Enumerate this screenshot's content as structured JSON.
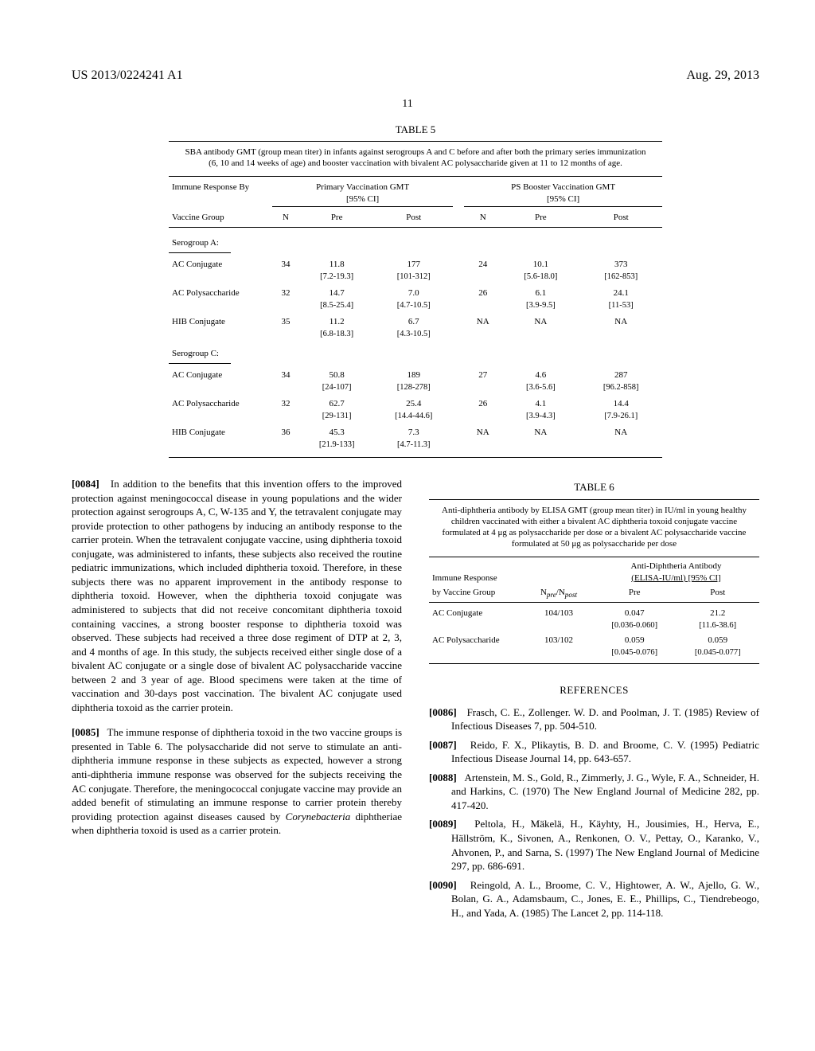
{
  "header": {
    "left": "US 2013/0224241 A1",
    "right": "Aug. 29, 2013",
    "page": "11"
  },
  "table5": {
    "label": "TABLE 5",
    "caption": "SBA antibody GMT (group mean titer) in infants against serogroups A and C before and after both the primary series immunization (6, 10 and 14 weeks of age) and booster vaccination with bivalent AC polysaccharide given at 11 to 12 months of age.",
    "col_group1_label": "Immune Response By",
    "col_group2_label": "Primary Vaccination GMT",
    "col_group2_sub": "[95% CI]",
    "col_group3_label": "PS Booster Vaccination GMT",
    "col_group3_sub": "[95% CI]",
    "sub_headers": {
      "vg": "Vaccine Group",
      "n": "N",
      "pre": "Pre",
      "post": "Post"
    },
    "sections": [
      {
        "name": "Serogroup A:",
        "rows": [
          {
            "vg": "AC Conjugate",
            "n1": "34",
            "pre1": "11.8",
            "pre1ci": "[7.2-19.3]",
            "post1": "177",
            "post1ci": "[101-312]",
            "n2": "24",
            "pre2": "10.1",
            "pre2ci": "[5.6-18.0]",
            "post2": "373",
            "post2ci": "[162-853]"
          },
          {
            "vg": "AC Polysaccharide",
            "n1": "32",
            "pre1": "14.7",
            "pre1ci": "[8.5-25.4]",
            "post1": "7.0",
            "post1ci": "[4.7-10.5]",
            "n2": "26",
            "pre2": "6.1",
            "pre2ci": "[3.9-9.5]",
            "post2": "24.1",
            "post2ci": "[11-53]"
          },
          {
            "vg": "HIB Conjugate",
            "n1": "35",
            "pre1": "11.2",
            "pre1ci": "[6.8-18.3]",
            "post1": "6.7",
            "post1ci": "[4.3-10.5]",
            "n2": "NA",
            "pre2": "NA",
            "pre2ci": "",
            "post2": "NA",
            "post2ci": ""
          }
        ]
      },
      {
        "name": "Serogroup C:",
        "rows": [
          {
            "vg": "AC Conjugate",
            "n1": "34",
            "pre1": "50.8",
            "pre1ci": "[24-107]",
            "post1": "189",
            "post1ci": "[128-278]",
            "n2": "27",
            "pre2": "4.6",
            "pre2ci": "[3.6-5.6]",
            "post2": "287",
            "post2ci": "[96.2-858]"
          },
          {
            "vg": "AC Polysaccharide",
            "n1": "32",
            "pre1": "62.7",
            "pre1ci": "[29-131]",
            "post1": "25.4",
            "post1ci": "[14.4-44.6]",
            "n2": "26",
            "pre2": "4.1",
            "pre2ci": "[3.9-4.3]",
            "post2": "14.4",
            "post2ci": "[7.9-26.1]"
          },
          {
            "vg": "HIB Conjugate",
            "n1": "36",
            "pre1": "45.3",
            "pre1ci": "[21.9-133]",
            "post1": "7.3",
            "post1ci": "[4.7-11.3]",
            "n2": "NA",
            "pre2": "NA",
            "pre2ci": "",
            "post2": "NA",
            "post2ci": ""
          }
        ]
      }
    ]
  },
  "para84": {
    "num": "[0084]",
    "text": "In addition to the benefits that this invention offers to the improved protection against meningococcal disease in young populations and the wider protection against serogroups A, C, W-135 and Y, the tetravalent conjugate may provide protection to other pathogens by inducing an antibody response to the carrier protein. When the tetravalent conjugate vaccine, using diphtheria toxoid conjugate, was administered to infants, these subjects also received the routine pediatric immunizations, which included diphtheria toxoid. Therefore, in these subjects there was no apparent improvement in the antibody response to diphtheria toxoid. However, when the diphtheria toxoid conjugate was administered to subjects that did not receive concomitant diphtheria toxoid containing vaccines, a strong booster response to diphtheria toxoid was observed. These subjects had received a three dose regiment of DTP at 2, 3, and 4 months of age. In this study, the subjects received either single dose of a bivalent AC conjugate or a single dose of bivalent AC polysaccharide vaccine between 2 and 3 year of age. Blood specimens were taken at the time of vaccination and 30-days post vaccination. The bivalent AC conjugate used diphtheria toxoid as the carrier protein."
  },
  "para85": {
    "num": "[0085]",
    "text_before_italic": "The immune response of diphtheria toxoid in the two vaccine groups is presented in Table 6. The polysaccharide did not serve to stimulate an anti-diphtheria immune response in these subjects as expected, however a strong anti-diphtheria immune response was observed for the subjects receiving the AC conjugate. Therefore, the meningococcal conjugate vaccine may provide an added benefit of stimulating an immune response to carrier protein thereby providing protection against diseases caused by ",
    "italic": "Corynebacteria",
    "text_after_italic": " diphtheriae when diphtheria toxoid is used as a carrier protein."
  },
  "table6": {
    "label": "TABLE 6",
    "caption": "Anti-diphtheria antibody by ELISA GMT (group mean titer) in IU/ml in young healthy children vaccinated with either a bivalent AC diphtheria toxoid conjugate vaccine formulated at 4 μg as polysaccharide per dose or a bivalent AC polysaccharide vaccine formulated at 50 μg as polysaccharide per dose",
    "h_ir": "Immune Response",
    "h_adab": "Anti-Diphtheria Antibody",
    "h_adab_sub": "(ELISA-IU/ml) [95% CI]",
    "h_vg": "by Vaccine Group",
    "h_n": "N",
    "h_n_pre": "pre",
    "h_n_post": "post",
    "h_pre": "Pre",
    "h_post": "Post",
    "rows": [
      {
        "vg": "AC Conjugate",
        "n": "104/103",
        "pre": "0.047",
        "preci": "[0.036-0.060]",
        "post": "21.2",
        "postci": "[11.6-38.6]"
      },
      {
        "vg": "AC Polysaccharide",
        "n": "103/102",
        "pre": "0.059",
        "preci": "[0.045-0.076]",
        "post": "0.059",
        "postci": "[0.045-0.077]"
      }
    ]
  },
  "refs": {
    "title": "REFERENCES",
    "items": [
      {
        "num": "[0086]",
        "text": "Frasch, C. E., Zollenger. W. D. and Poolman, J. T. (1985) Review of Infectious Diseases 7, pp. 504-510."
      },
      {
        "num": "[0087]",
        "text": "Reido, F. X., Plikaytis, B. D. and Broome, C. V. (1995) Pediatric Infectious Disease Journal 14, pp. 643-657."
      },
      {
        "num": "[0088]",
        "text": "Artenstein, M. S., Gold, R., Zimmerly, J. G., Wyle, F. A., Schneider, H. and Harkins, C. (1970) The New England Journal of Medicine 282, pp. 417-420."
      },
      {
        "num": "[0089]",
        "text": "Peltola, H., Mäkelä, H., Käyhty, H., Jousimies, H., Herva, E., Hällström, K., Sivonen, A., Renkonen, O. V., Pettay, O., Karanko, V., Ahvonen, P., and Sarna, S. (1997) The New England Journal of Medicine 297, pp. 686-691."
      },
      {
        "num": "[0090]",
        "text": "Reingold, A. L., Broome, C. V., Hightower, A. W., Ajello, G. W., Bolan, G. A., Adamsbaum, C., Jones, E. E., Phillips, C., Tiendrebeogo, H., and Yada, A. (1985) The Lancet 2, pp. 114-118."
      }
    ]
  }
}
